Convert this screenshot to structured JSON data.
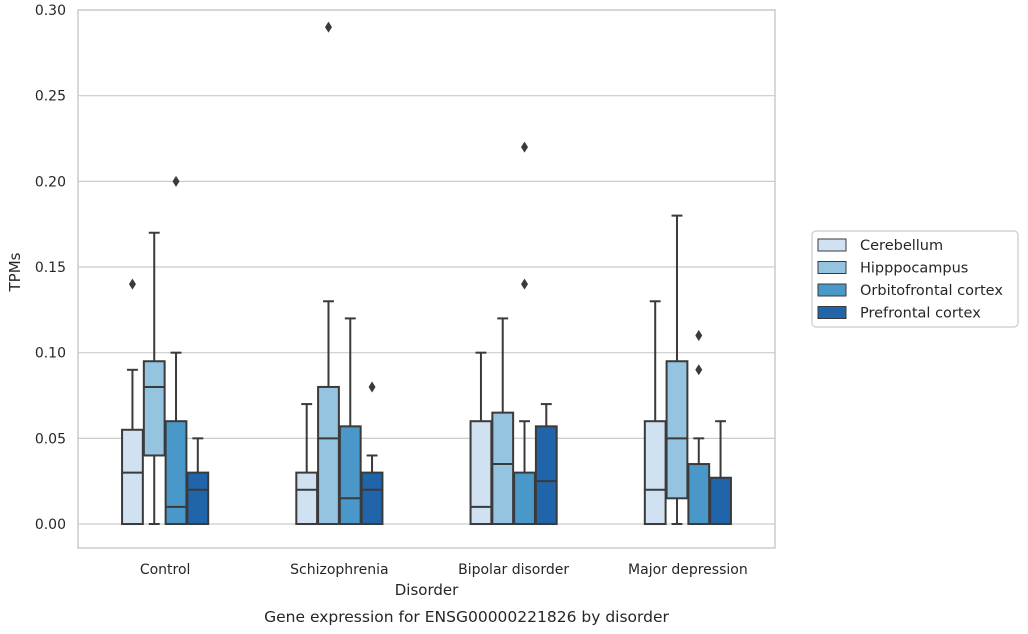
{
  "chart_data": {
    "type": "box",
    "xlabel": "Disorder",
    "ylabel": "TPMs",
    "caption": "Gene expression for ENSG00000221826 by disorder",
    "ylim": [
      -0.014,
      0.3
    ],
    "yticks": [
      "0.00",
      "0.05",
      "0.10",
      "0.15",
      "0.20",
      "0.25",
      "0.30"
    ],
    "ytick_values": [
      0.0,
      0.05,
      0.1,
      0.15,
      0.2,
      0.25,
      0.3
    ],
    "grid": "horizontal",
    "legend_position": "right",
    "categories": [
      "Control",
      "Schizophrenia",
      "Bipolar disorder",
      "Major depression"
    ],
    "series": [
      {
        "name": "Cerebellum",
        "color": "#d0e1f2",
        "boxes": [
          {
            "min": 0.0,
            "q1": 0.0,
            "median": 0.03,
            "q3": 0.055,
            "max": 0.09,
            "outliers": [
              0.14
            ]
          },
          {
            "min": 0.0,
            "q1": 0.0,
            "median": 0.02,
            "q3": 0.03,
            "max": 0.07,
            "outliers": []
          },
          {
            "min": 0.0,
            "q1": 0.0,
            "median": 0.01,
            "q3": 0.06,
            "max": 0.1,
            "outliers": []
          },
          {
            "min": 0.0,
            "q1": 0.0,
            "median": 0.02,
            "q3": 0.06,
            "max": 0.13,
            "outliers": []
          }
        ]
      },
      {
        "name": "Hipppocampus",
        "color": "#94c4df",
        "boxes": [
          {
            "min": 0.0,
            "q1": 0.04,
            "median": 0.08,
            "q3": 0.095,
            "max": 0.17,
            "outliers": []
          },
          {
            "min": 0.0,
            "q1": 0.0,
            "median": 0.05,
            "q3": 0.08,
            "max": 0.13,
            "outliers": [
              0.29
            ]
          },
          {
            "min": 0.0,
            "q1": 0.0,
            "median": 0.035,
            "q3": 0.065,
            "max": 0.12,
            "outliers": []
          },
          {
            "min": 0.0,
            "q1": 0.015,
            "median": 0.05,
            "q3": 0.095,
            "max": 0.18,
            "outliers": []
          }
        ]
      },
      {
        "name": "Orbitofrontal cortex",
        "color": "#4a98c9",
        "boxes": [
          {
            "min": 0.0,
            "q1": 0.0,
            "median": 0.01,
            "q3": 0.06,
            "max": 0.1,
            "outliers": [
              0.2
            ]
          },
          {
            "min": 0.0,
            "q1": 0.0,
            "median": 0.015,
            "q3": 0.057,
            "max": 0.12,
            "outliers": []
          },
          {
            "min": 0.0,
            "q1": 0.0,
            "median": 0.0,
            "q3": 0.03,
            "max": 0.06,
            "outliers": [
              0.22,
              0.14
            ]
          },
          {
            "min": 0.0,
            "q1": 0.0,
            "median": 0.0,
            "q3": 0.035,
            "max": 0.05,
            "outliers": [
              0.11,
              0.09
            ]
          }
        ]
      },
      {
        "name": "Prefrontal cortex",
        "color": "#2064aa",
        "boxes": [
          {
            "min": 0.0,
            "q1": 0.0,
            "median": 0.02,
            "q3": 0.03,
            "max": 0.05,
            "outliers": []
          },
          {
            "min": 0.0,
            "q1": 0.0,
            "median": 0.02,
            "q3": 0.03,
            "max": 0.04,
            "outliers": [
              0.08
            ]
          },
          {
            "min": 0.0,
            "q1": 0.0,
            "median": 0.025,
            "q3": 0.057,
            "max": 0.07,
            "outliers": []
          },
          {
            "min": 0.0,
            "q1": 0.0,
            "median": 0.0,
            "q3": 0.027,
            "max": 0.06,
            "outliers": []
          }
        ]
      }
    ]
  }
}
